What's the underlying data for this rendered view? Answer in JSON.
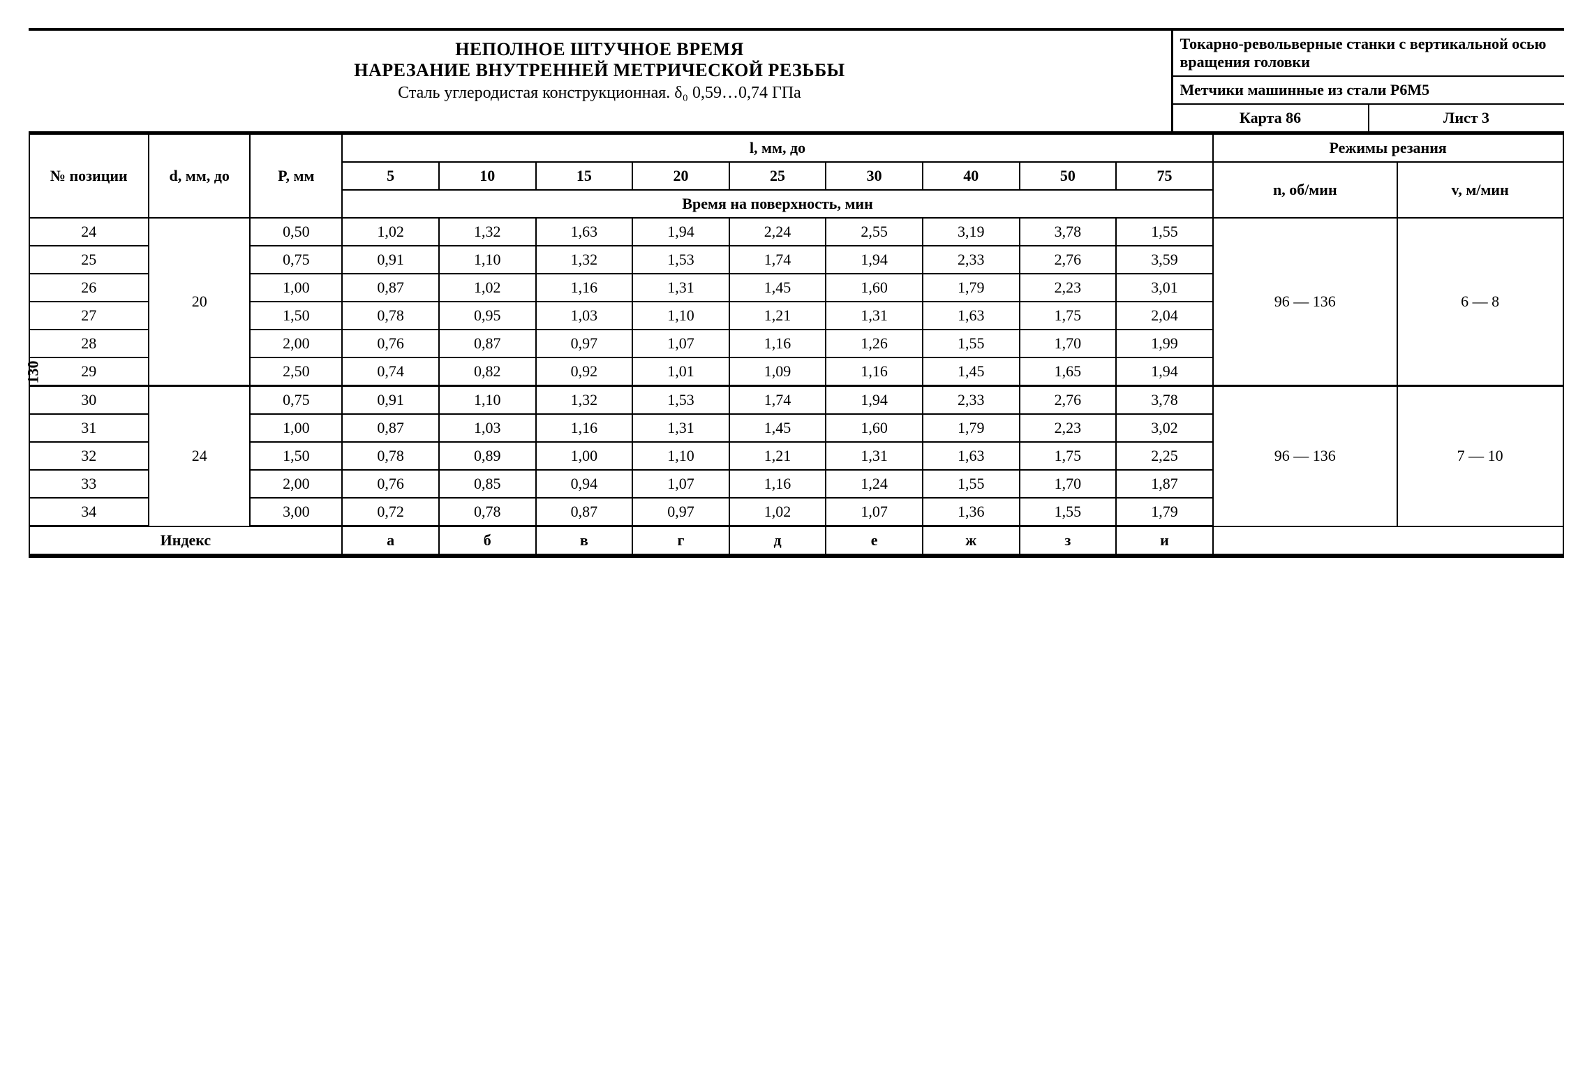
{
  "page_number": "130",
  "title": {
    "line1": "НЕПОЛНОЕ ШТУЧНОЕ ВРЕМЯ",
    "line2": "НАРЕЗАНИЕ ВНУТРЕННЕЙ МЕТРИЧЕСКОЙ РЕЗЬБЫ",
    "line3": "Сталь углеродистая конструкционная. δ₀ 0,59…0,74 ГПа"
  },
  "right_block": {
    "machine": "Токарно-револьверные станки с вертикальной осью вращения головки",
    "tool": "Метчики машинные из стали Р6М5",
    "card": "Карта 86",
    "sheet": "Лист 3"
  },
  "headers": {
    "pos": "№ позиции",
    "d": "d, мм, до",
    "p": "P, мм",
    "l": "l, мм, до",
    "mode": "Режимы резания",
    "surf": "Время на поверхность, мин",
    "n": "n, об/мин",
    "v": "v, м/мин",
    "l_vals": [
      "5",
      "10",
      "15",
      "20",
      "25",
      "30",
      "40",
      "50",
      "75"
    ],
    "index_label": "Индекс",
    "index_vals": [
      "а",
      "б",
      "в",
      "г",
      "д",
      "е",
      "ж",
      "з",
      "и"
    ]
  },
  "groups": [
    {
      "d": "20",
      "n": "96 — 136",
      "v": "6 — 8",
      "rows": [
        {
          "pos": "24",
          "p": "0,50",
          "vals": [
            "1,02",
            "1,32",
            "1,63",
            "1,94",
            "2,24",
            "2,55",
            "3,19",
            "3,78",
            "1,55"
          ]
        },
        {
          "pos": "25",
          "p": "0,75",
          "vals": [
            "0,91",
            "1,10",
            "1,32",
            "1,53",
            "1,74",
            "1,94",
            "2,33",
            "2,76",
            "3,59"
          ]
        },
        {
          "pos": "26",
          "p": "1,00",
          "vals": [
            "0,87",
            "1,02",
            "1,16",
            "1,31",
            "1,45",
            "1,60",
            "1,79",
            "2,23",
            "3,01"
          ]
        },
        {
          "pos": "27",
          "p": "1,50",
          "vals": [
            "0,78",
            "0,95",
            "1,03",
            "1,10",
            "1,21",
            "1,31",
            "1,63",
            "1,75",
            "2,04"
          ]
        },
        {
          "pos": "28",
          "p": "2,00",
          "vals": [
            "0,76",
            "0,87",
            "0,97",
            "1,07",
            "1,16",
            "1,26",
            "1,55",
            "1,70",
            "1,99"
          ]
        },
        {
          "pos": "29",
          "p": "2,50",
          "vals": [
            "0,74",
            "0,82",
            "0,92",
            "1,01",
            "1,09",
            "1,16",
            "1,45",
            "1,65",
            "1,94"
          ]
        }
      ]
    },
    {
      "d": "24",
      "n": "96 — 136",
      "v": "7 — 10",
      "rows": [
        {
          "pos": "30",
          "p": "0,75",
          "vals": [
            "0,91",
            "1,10",
            "1,32",
            "1,53",
            "1,74",
            "1,94",
            "2,33",
            "2,76",
            "3,78"
          ]
        },
        {
          "pos": "31",
          "p": "1,00",
          "vals": [
            "0,87",
            "1,03",
            "1,16",
            "1,31",
            "1,45",
            "1,60",
            "1,79",
            "2,23",
            "3,02"
          ]
        },
        {
          "pos": "32",
          "p": "1,50",
          "vals": [
            "0,78",
            "0,89",
            "1,00",
            "1,10",
            "1,21",
            "1,31",
            "1,63",
            "1,75",
            "2,25"
          ]
        },
        {
          "pos": "33",
          "p": "2,00",
          "vals": [
            "0,76",
            "0,85",
            "0,94",
            "1,07",
            "1,16",
            "1,24",
            "1,55",
            "1,70",
            "1,87"
          ]
        },
        {
          "pos": "34",
          "p": "3,00",
          "vals": [
            "0,72",
            "0,78",
            "0,87",
            "0,97",
            "1,02",
            "1,07",
            "1,36",
            "1,55",
            "1,79"
          ]
        }
      ]
    }
  ]
}
